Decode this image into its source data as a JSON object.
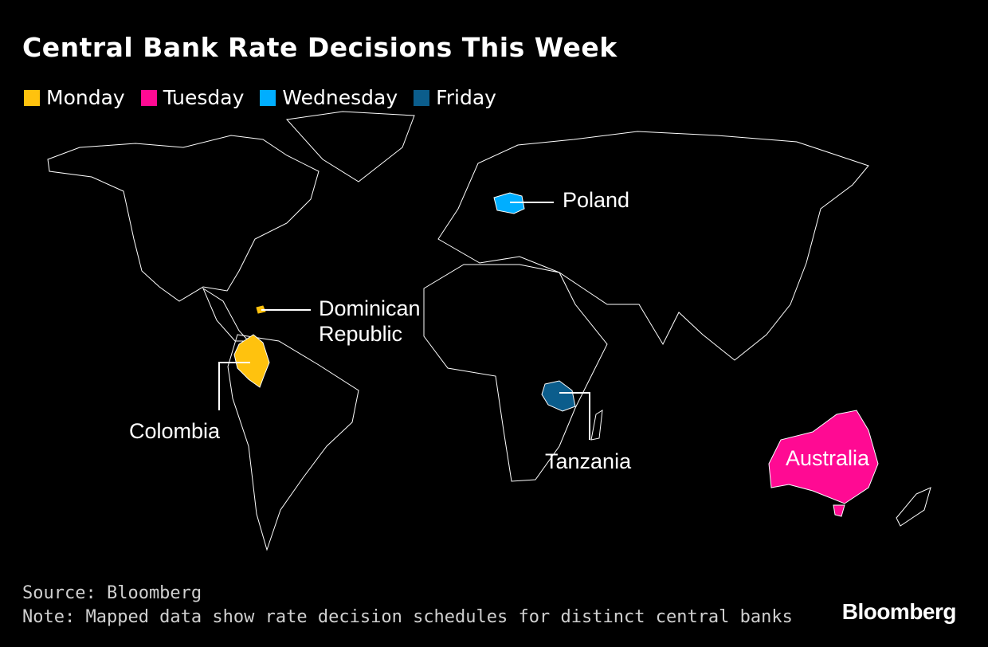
{
  "title": "Central Bank Rate Decisions This Week",
  "legend": [
    {
      "label": "Monday",
      "color": "#FFC20E"
    },
    {
      "label": "Tuesday",
      "color": "#FF0A93"
    },
    {
      "label": "Wednesday",
      "color": "#00AEFF"
    },
    {
      "label": "Friday",
      "color": "#0B5D8C"
    }
  ],
  "countries": {
    "poland": {
      "label": "Poland",
      "day": "Wednesday"
    },
    "dominican": {
      "label_line1": "Dominican",
      "label_line2": "Republic",
      "day": "Monday"
    },
    "colombia": {
      "label": "Colombia",
      "day": "Monday"
    },
    "tanzania": {
      "label": "Tanzania",
      "day": "Friday"
    },
    "australia": {
      "label": "Australia",
      "day": "Tuesday"
    }
  },
  "footer": {
    "source": "Source: Bloomberg",
    "note": "Note: Mapped data show rate decision schedules for distinct central banks"
  },
  "brand": "Bloomberg"
}
